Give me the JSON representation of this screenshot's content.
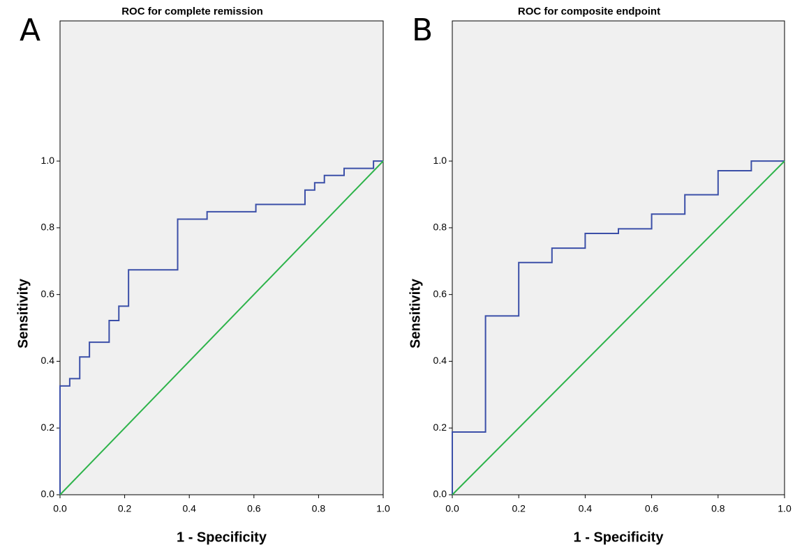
{
  "chart_data": [
    {
      "type": "line",
      "panel_label": "A",
      "title": "ROC for complete remission",
      "x_label": "1 - Specificity",
      "y_label": "Sensitivity",
      "xlim": [
        0,
        1
      ],
      "ylim": [
        0,
        1.42
      ],
      "xticks": [
        {
          "value": 0,
          "label": "0.0"
        },
        {
          "value": 0.2,
          "label": "0.2"
        },
        {
          "value": 0.4,
          "label": "0.4"
        },
        {
          "value": 0.6,
          "label": "0.6"
        },
        {
          "value": 0.8,
          "label": "0.8"
        },
        {
          "value": 1,
          "label": "1.0"
        }
      ],
      "yticks": [
        {
          "value": 0,
          "label": "0.0"
        },
        {
          "value": 0.2,
          "label": "0.2"
        },
        {
          "value": 0.4,
          "label": "0.4"
        },
        {
          "value": 0.6,
          "label": "0.6"
        },
        {
          "value": 0.8,
          "label": "0.8"
        },
        {
          "value": 1,
          "label": "1.0"
        }
      ],
      "series": [
        {
          "color": "#3b4fa8",
          "x": [
            0,
            0,
            0.03,
            0.03,
            0.061,
            0.061,
            0.091,
            0.091,
            0.152,
            0.152,
            0.182,
            0.182,
            0.212,
            0.212,
            0.364,
            0.364,
            0.455,
            0.455,
            0.606,
            0.606,
            0.758,
            0.758,
            0.788,
            0.788,
            0.818,
            0.818,
            0.879,
            0.879,
            0.97,
            0.97,
            1
          ],
          "values": [
            0,
            0.326,
            0.326,
            0.348,
            0.348,
            0.413,
            0.413,
            0.457,
            0.457,
            0.522,
            0.522,
            0.565,
            0.565,
            0.674,
            0.674,
            0.826,
            0.826,
            0.848,
            0.848,
            0.87,
            0.87,
            0.913,
            0.913,
            0.935,
            0.935,
            0.957,
            0.957,
            0.978,
            0.978,
            1,
            1
          ]
        },
        {
          "color": "#2db34a",
          "x": [
            0,
            1
          ],
          "values": [
            0,
            1
          ]
        }
      ]
    },
    {
      "type": "line",
      "panel_label": "B",
      "title": "ROC for composite endpoint",
      "x_label": "1 - Specificity",
      "y_label": "Sensitivity",
      "xlim": [
        0,
        1
      ],
      "ylim": [
        0,
        1.42
      ],
      "xticks": [
        {
          "value": 0,
          "label": "0.0"
        },
        {
          "value": 0.2,
          "label": "0.2"
        },
        {
          "value": 0.4,
          "label": "0.4"
        },
        {
          "value": 0.6,
          "label": "0.6"
        },
        {
          "value": 0.8,
          "label": "0.8"
        },
        {
          "value": 1,
          "label": "1.0"
        }
      ],
      "yticks": [
        {
          "value": 0,
          "label": "0.0"
        },
        {
          "value": 0.2,
          "label": "0.2"
        },
        {
          "value": 0.4,
          "label": "0.4"
        },
        {
          "value": 0.6,
          "label": "0.6"
        },
        {
          "value": 0.8,
          "label": "0.8"
        },
        {
          "value": 1,
          "label": "1.0"
        }
      ],
      "series": [
        {
          "color": "#3b4fa8",
          "x": [
            0,
            0,
            0.1,
            0.1,
            0.2,
            0.2,
            0.3,
            0.3,
            0.4,
            0.4,
            0.5,
            0.5,
            0.6,
            0.6,
            0.7,
            0.7,
            0.8,
            0.8,
            0.9,
            0.9,
            1
          ],
          "values": [
            0,
            0.188,
            0.188,
            0.536,
            0.536,
            0.696,
            0.696,
            0.739,
            0.739,
            0.783,
            0.783,
            0.797,
            0.797,
            0.841,
            0.841,
            0.899,
            0.899,
            0.971,
            0.971,
            1,
            1
          ]
        },
        {
          "color": "#2db34a",
          "x": [
            0,
            1
          ],
          "values": [
            0,
            1
          ]
        }
      ]
    }
  ]
}
